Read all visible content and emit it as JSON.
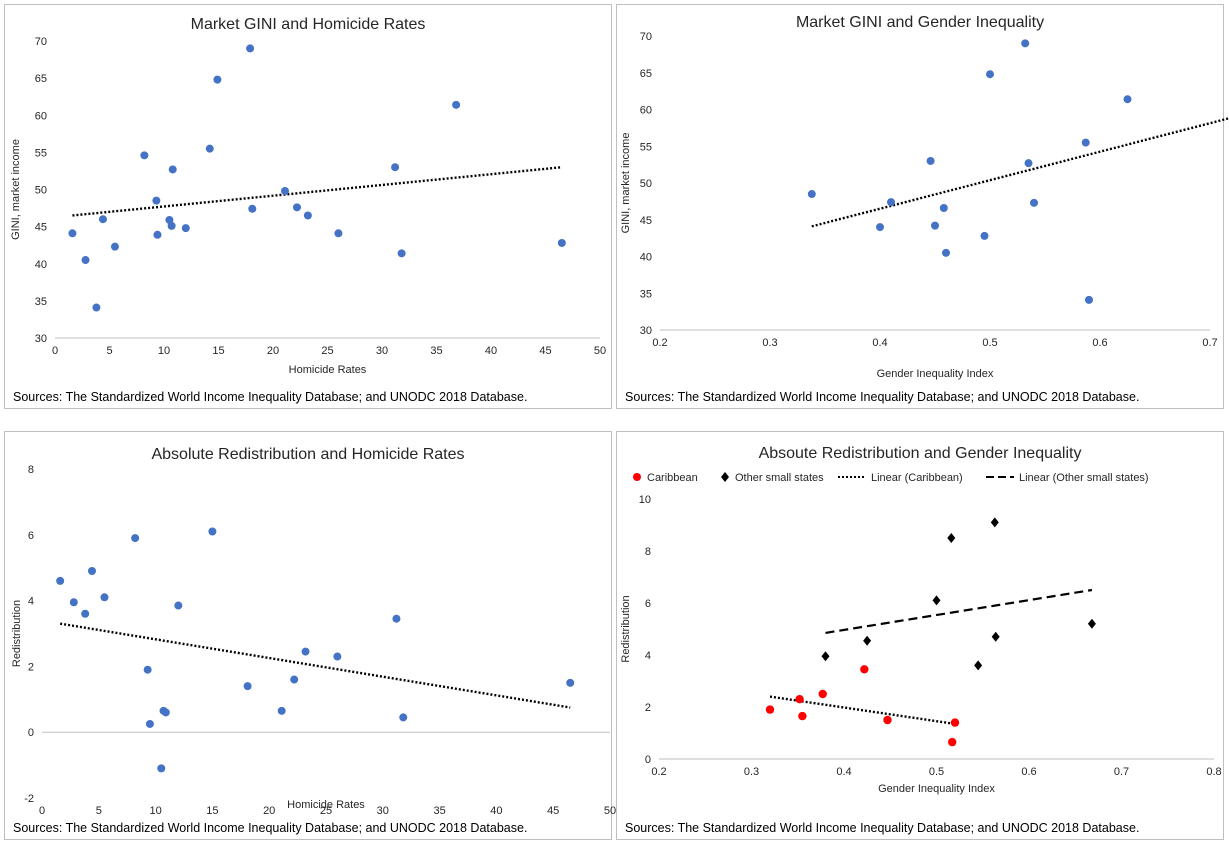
{
  "colors": {
    "blue": "#4472c4",
    "red": "#ff0000",
    "black": "#000000",
    "trend": "#000000"
  },
  "source_text": "Sources: The Standardized World Income Inequality Database; and UNODC 2018 Database.",
  "chart_data": [
    {
      "type": "scatter",
      "title": "Market GINI and Homicide Rates",
      "xlabel": "Homicide Rates",
      "ylabel": "GINI, market income",
      "xlim": [
        0,
        50
      ],
      "ylim": [
        30,
        70
      ],
      "xticks": [
        0,
        5,
        10,
        15,
        20,
        25,
        30,
        35,
        40,
        45,
        50
      ],
      "yticks": [
        30,
        35,
        40,
        45,
        50,
        55,
        60,
        65,
        70
      ],
      "points": [
        [
          1.6,
          44.1
        ],
        [
          2.8,
          40.5
        ],
        [
          3.8,
          34.1
        ],
        [
          4.4,
          46.0
        ],
        [
          5.5,
          42.3
        ],
        [
          8.2,
          54.6
        ],
        [
          9.3,
          48.5
        ],
        [
          9.4,
          43.9
        ],
        [
          10.5,
          45.9
        ],
        [
          10.7,
          45.1
        ],
        [
          10.8,
          52.7
        ],
        [
          12.0,
          44.8
        ],
        [
          14.2,
          55.5
        ],
        [
          14.9,
          64.8
        ],
        [
          17.9,
          69.0
        ],
        [
          18.1,
          47.4
        ],
        [
          21.1,
          49.8
        ],
        [
          22.2,
          47.6
        ],
        [
          23.2,
          46.5
        ],
        [
          26.0,
          44.1
        ],
        [
          31.2,
          53.0
        ],
        [
          31.8,
          41.4
        ],
        [
          36.8,
          61.4
        ],
        [
          46.5,
          42.8
        ]
      ],
      "trend": {
        "style": "dotted",
        "from": [
          1.6,
          46.5
        ],
        "to": [
          46.5,
          53.0
        ]
      },
      "grid": false
    },
    {
      "type": "scatter",
      "title": "Market GINI and Gender Inequality",
      "xlabel": "Gender Inequality Index",
      "ylabel": "GINI, market income",
      "xlim": [
        0.2,
        0.7
      ],
      "ylim": [
        30,
        70
      ],
      "xticks": [
        0.2,
        0.3,
        0.4,
        0.5,
        0.6,
        0.7
      ],
      "yticks": [
        30,
        35,
        40,
        45,
        50,
        55,
        60,
        65,
        70
      ],
      "points": [
        [
          0.338,
          48.5
        ],
        [
          0.4,
          44.0
        ],
        [
          0.41,
          47.4
        ],
        [
          0.458,
          46.6
        ],
        [
          0.46,
          40.5
        ],
        [
          0.446,
          53.0
        ],
        [
          0.45,
          44.2
        ],
        [
          0.495,
          42.8
        ],
        [
          0.5,
          64.8
        ],
        [
          0.532,
          69.0
        ],
        [
          0.535,
          52.7
        ],
        [
          0.54,
          47.3
        ],
        [
          0.59,
          34.1
        ],
        [
          0.625,
          61.4
        ],
        [
          0.587,
          55.5
        ]
      ],
      "trend": {
        "style": "dotted",
        "from": [
          0.338,
          44.1
        ],
        "to": [
          0.73,
          59.3
        ]
      },
      "grid": false
    },
    {
      "type": "scatter",
      "title": "Absolute Redistribution and Homicide Rates",
      "xlabel": "Homicide Rates",
      "ylabel": "Redistribution",
      "xlim": [
        0,
        50
      ],
      "ylim": [
        -2,
        8
      ],
      "xticks": [
        0,
        5,
        10,
        15,
        20,
        25,
        30,
        35,
        40,
        45,
        50
      ],
      "yticks": [
        -2,
        0,
        2,
        4,
        6,
        8
      ],
      "points": [
        [
          1.6,
          4.6
        ],
        [
          2.8,
          3.95
        ],
        [
          3.8,
          3.6
        ],
        [
          4.4,
          4.9
        ],
        [
          5.5,
          4.1
        ],
        [
          8.2,
          5.9
        ],
        [
          9.3,
          1.9
        ],
        [
          9.5,
          0.25
        ],
        [
          10.5,
          -1.1
        ],
        [
          10.7,
          0.65
        ],
        [
          10.9,
          0.6
        ],
        [
          12.0,
          3.85
        ],
        [
          15.0,
          6.1
        ],
        [
          18.1,
          1.4
        ],
        [
          21.1,
          0.65
        ],
        [
          22.2,
          1.6
        ],
        [
          23.2,
          2.45
        ],
        [
          26.0,
          2.3
        ],
        [
          31.2,
          3.45
        ],
        [
          31.8,
          0.45
        ],
        [
          46.5,
          1.5
        ]
      ],
      "trend": {
        "style": "dotted",
        "from": [
          1.6,
          3.3
        ],
        "to": [
          46.5,
          0.75
        ]
      },
      "grid": false
    },
    {
      "type": "scatter",
      "title": "Absoute Redistribution and Gender Inequality",
      "xlabel": "Gender Inequality Index",
      "ylabel": "Redistribution",
      "xlim": [
        0.2,
        0.8
      ],
      "ylim": [
        0,
        10
      ],
      "xticks": [
        0.2,
        0.3,
        0.4,
        0.5,
        0.6,
        0.7,
        0.8
      ],
      "yticks": [
        0,
        2,
        4,
        6,
        8,
        10
      ],
      "legend": [
        "Caribbean",
        "Other small states",
        "Linear (Caribbean)",
        "Linear (Other small states)"
      ],
      "legend_position": "top",
      "series": [
        {
          "name": "Caribbean",
          "marker": "circle",
          "color": "#ff0000",
          "points": [
            [
              0.32,
              1.9
            ],
            [
              0.352,
              2.3
            ],
            [
              0.355,
              1.65
            ],
            [
              0.377,
              2.5
            ],
            [
              0.422,
              3.45
            ],
            [
              0.447,
              1.5
            ],
            [
              0.517,
              0.65
            ],
            [
              0.52,
              1.4
            ]
          ],
          "trend": {
            "style": "dotted",
            "from": [
              0.32,
              2.4
            ],
            "to": [
              0.52,
              1.35
            ]
          }
        },
        {
          "name": "Other small states",
          "marker": "diamond",
          "color": "#000000",
          "points": [
            [
              0.38,
              3.95
            ],
            [
              0.425,
              4.55
            ],
            [
              0.5,
              6.1
            ],
            [
              0.516,
              8.5
            ],
            [
              0.545,
              3.6
            ],
            [
              0.563,
              9.1
            ],
            [
              0.564,
              4.7
            ],
            [
              0.668,
              5.2
            ]
          ],
          "trend": {
            "style": "dashed",
            "from": [
              0.38,
              4.85
            ],
            "to": [
              0.668,
              6.5
            ]
          }
        }
      ],
      "grid": false
    }
  ]
}
